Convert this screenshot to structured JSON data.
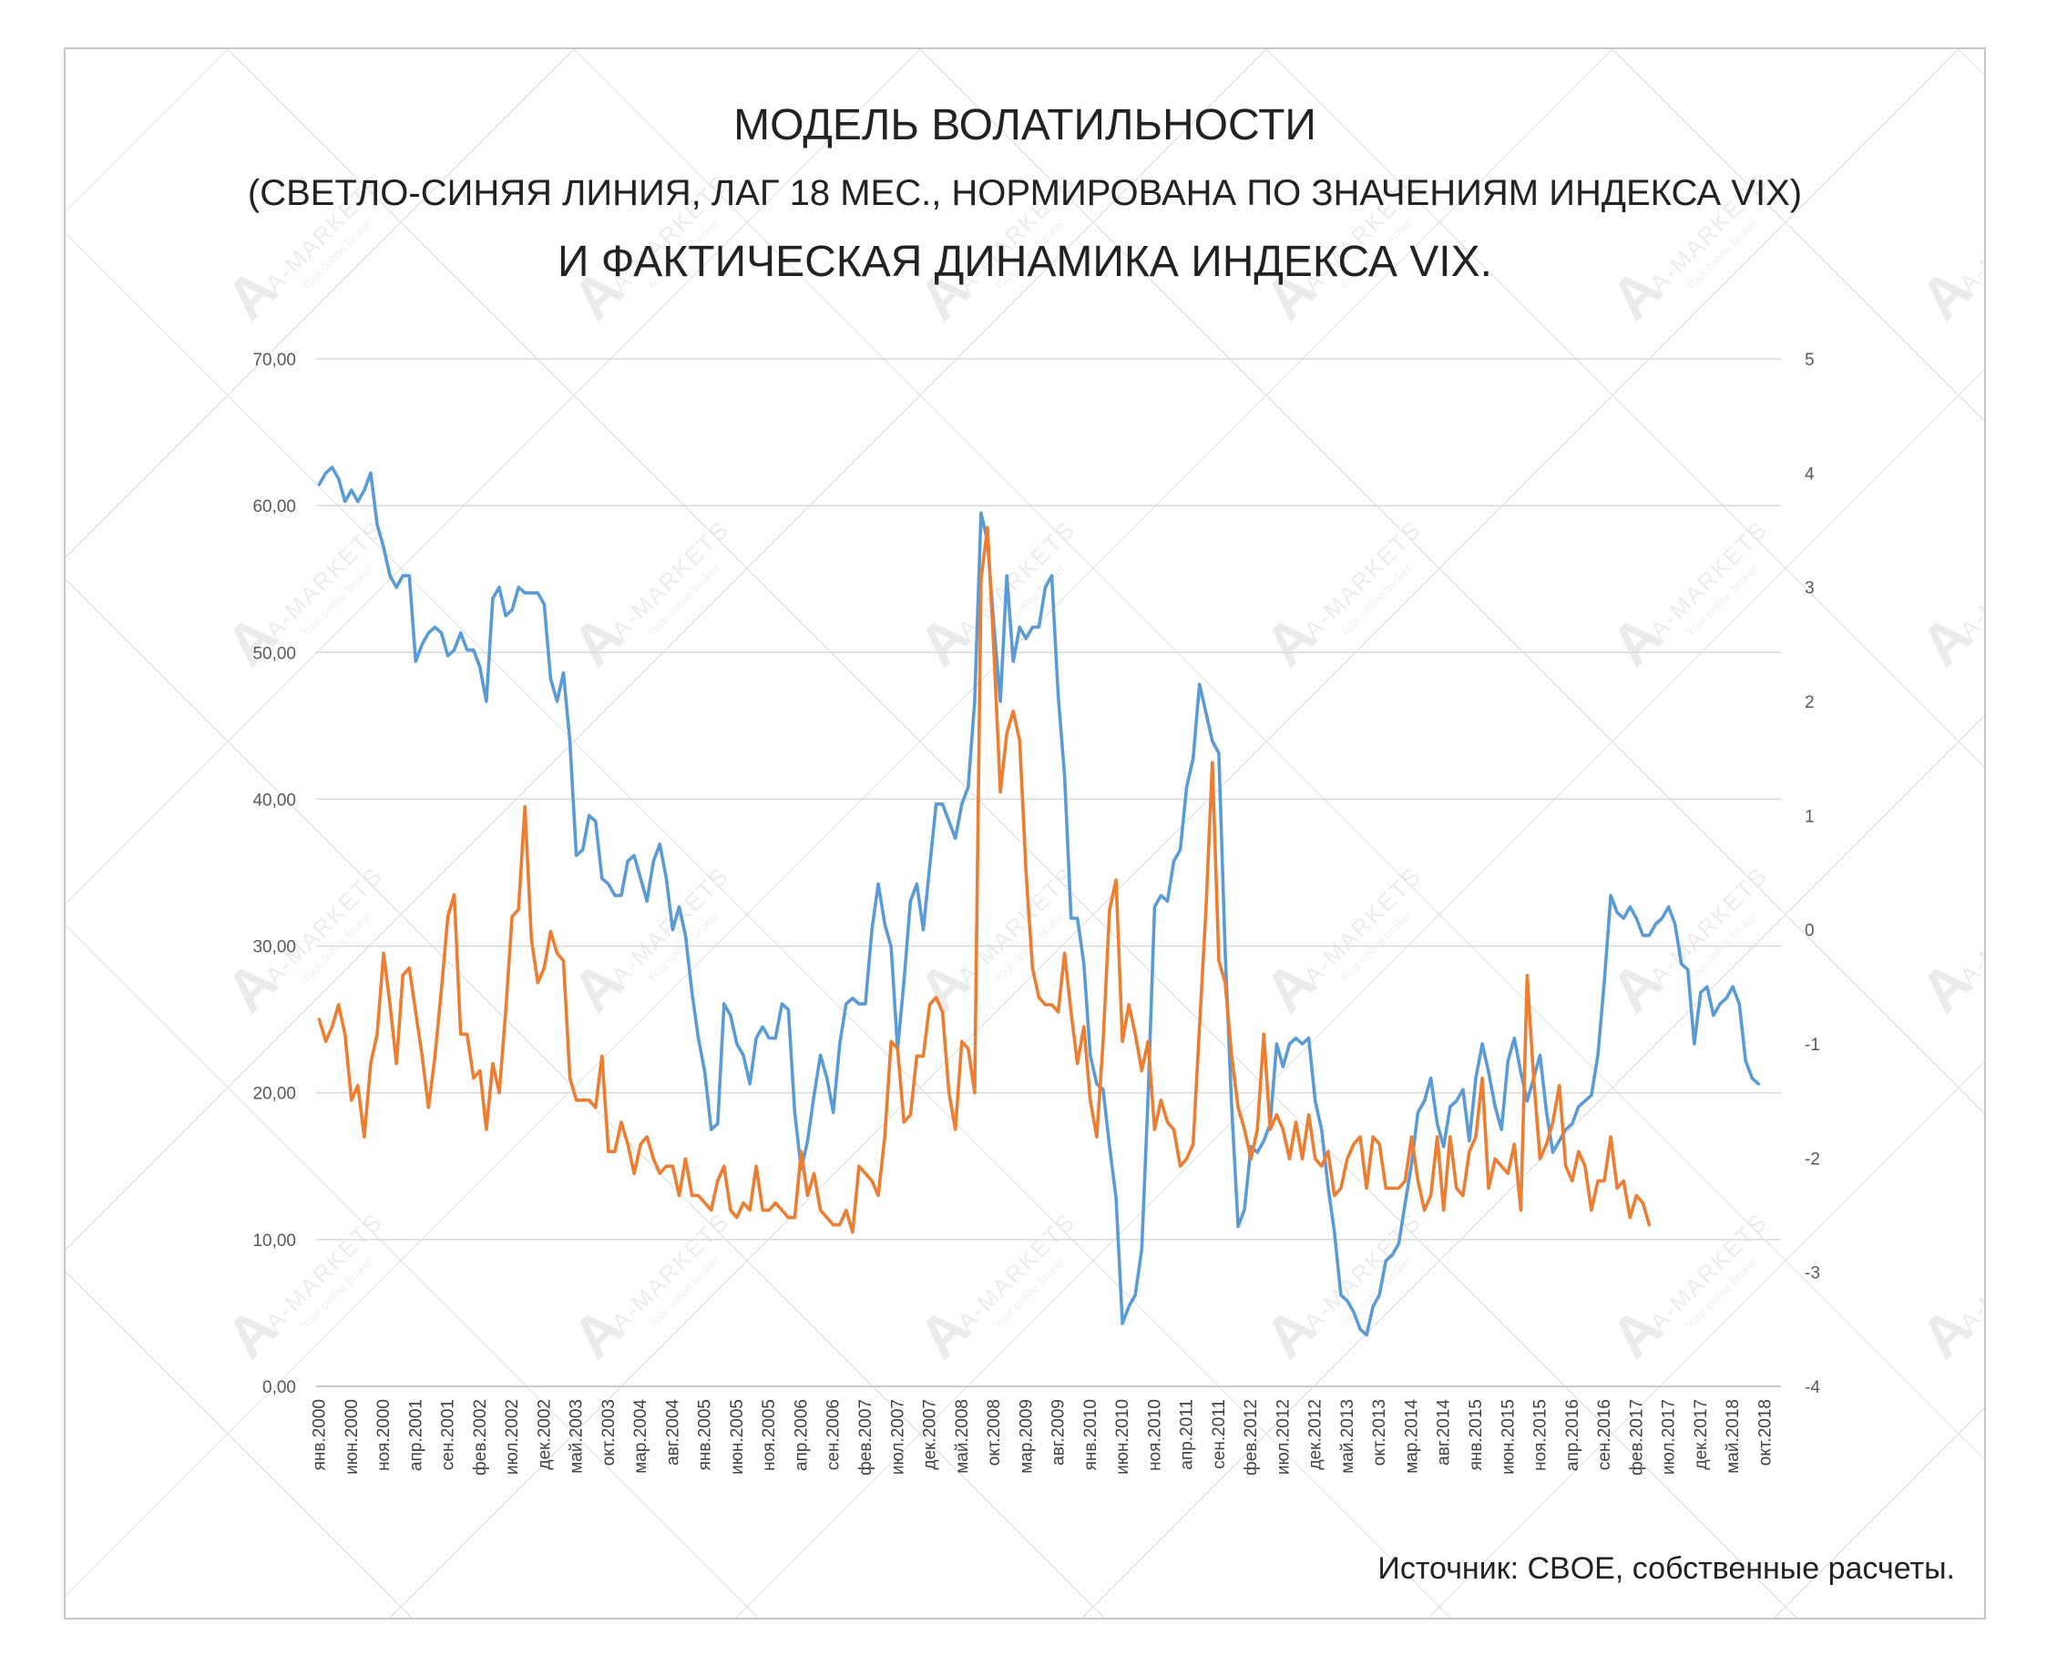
{
  "title_line1": "МОДЕЛЬ ВОЛАТИЛЬНОСТИ",
  "title_line2": "(СВЕТЛО-СИНЯЯ ЛИНИЯ, ЛАГ 18 МЕС., НОРМИРОВАНА ПО ЗНАЧЕНИЯМ ИНДЕКСА VIX)",
  "title_line3": "И ФАКТИЧЕСКАЯ ДИНАМИКА ИНДЕКСА VIX.",
  "source": "Источник: CBOE, собственные расчеты.",
  "watermark": {
    "brand": "A-MARKETS",
    "slogan": "Your online broker"
  },
  "chart_data": {
    "type": "line",
    "grid": true,
    "legend": "none",
    "x_start": "янв.2000",
    "x_end": "дек.2018",
    "x_labels": [
      "янв.2000",
      "июн.2000",
      "ноя.2000",
      "апр.2001",
      "сен.2001",
      "фев.2002",
      "июл.2002",
      "дек.2002",
      "май.2003",
      "окт.2003",
      "мар.2004",
      "авг.2004",
      "янв.2005",
      "июн.2005",
      "ноя.2005",
      "апр.2006",
      "сен.2006",
      "фев.2007",
      "июл.2007",
      "дек.2007",
      "май.2008",
      "окт.2008",
      "мар.2009",
      "авг.2009",
      "янв.2010",
      "июн.2010",
      "ноя.2010",
      "апр.2011",
      "сен.2011",
      "фев.2012",
      "июл.2012",
      "дек.2012",
      "май.2013",
      "окт.2013",
      "мар.2014",
      "авг.2014",
      "янв.2015",
      "июн.2015",
      "ноя.2015",
      "апр.2016",
      "сен.2016",
      "фев.2017",
      "июл.2017",
      "дек.2017",
      "май.2018",
      "окт.2018"
    ],
    "y_left": {
      "min": 0,
      "max": 70,
      "ticks": [
        "0,00",
        "10,00",
        "20,00",
        "30,00",
        "40,00",
        "50,00",
        "60,00",
        "70,00"
      ]
    },
    "y_right": {
      "min": -4,
      "max": 5,
      "ticks": [
        "-4",
        "-3",
        "-2",
        "-1",
        "0",
        "1",
        "2",
        "3",
        "4",
        "5"
      ]
    },
    "series": [
      {
        "axis": "right",
        "color": "#5b9bd5",
        "values": [
          3.9,
          4.0,
          4.05,
          3.95,
          3.75,
          3.85,
          3.75,
          3.85,
          4.0,
          3.55,
          3.35,
          3.1,
          3.0,
          3.1,
          3.1,
          2.35,
          2.5,
          2.6,
          2.65,
          2.6,
          2.4,
          2.45,
          2.6,
          2.45,
          2.45,
          2.3,
          2.0,
          2.9,
          3.0,
          2.75,
          2.8,
          3.0,
          2.95,
          2.95,
          2.95,
          2.85,
          2.2,
          2.0,
          2.25,
          1.65,
          0.65,
          0.7,
          1.0,
          0.95,
          0.45,
          0.4,
          0.3,
          0.3,
          0.6,
          0.65,
          0.45,
          0.25,
          0.6,
          0.75,
          0.45,
          0.0,
          0.2,
          -0.05,
          -0.55,
          -0.95,
          -1.25,
          -1.75,
          -1.7,
          -0.65,
          -0.75,
          -1.0,
          -1.1,
          -1.35,
          -0.95,
          -0.85,
          -0.95,
          -0.95,
          -0.65,
          -0.7,
          -1.6,
          -2.1,
          -1.85,
          -1.45,
          -1.1,
          -1.3,
          -1.6,
          -1.0,
          -0.65,
          -0.6,
          -0.65,
          -0.65,
          0.0,
          0.4,
          0.05,
          -0.15,
          -1.05,
          -0.45,
          0.25,
          0.4,
          0.0,
          0.55,
          1.1,
          1.1,
          0.95,
          0.8,
          1.1,
          1.25,
          2.0,
          3.65,
          3.4,
          2.65,
          2.0,
          3.1,
          2.35,
          2.65,
          2.55,
          2.65,
          2.65,
          3.0,
          3.1,
          2.05,
          1.35,
          0.1,
          0.1,
          -0.3,
          -1.1,
          -1.35,
          -1.4,
          -1.9,
          -2.35,
          -3.45,
          -3.3,
          -3.2,
          -2.8,
          -1.45,
          0.2,
          0.3,
          0.25,
          0.6,
          0.7,
          1.25,
          1.5,
          2.15,
          1.9,
          1.65,
          1.55,
          -0.2,
          -1.55,
          -2.6,
          -2.45,
          -1.9,
          -1.95,
          -1.85,
          -1.7,
          -1.0,
          -1.2,
          -1.0,
          -0.95,
          -1.0,
          -0.95,
          -1.5,
          -1.75,
          -2.25,
          -2.65,
          -3.2,
          -3.25,
          -3.35,
          -3.5,
          -3.55,
          -3.3,
          -3.2,
          -2.9,
          -2.85,
          -2.75,
          -2.4,
          -2.05,
          -1.6,
          -1.5,
          -1.3,
          -1.7,
          -1.9,
          -1.55,
          -1.5,
          -1.4,
          -1.85,
          -1.3,
          -1.0,
          -1.25,
          -1.55,
          -1.75,
          -1.15,
          -0.95,
          -1.25,
          -1.5,
          -1.3,
          -1.1,
          -1.6,
          -1.95,
          -1.85,
          -1.75,
          -1.7,
          -1.55,
          -1.5,
          -1.45,
          -1.1,
          -0.45,
          0.3,
          0.15,
          0.1,
          0.2,
          0.1,
          -0.05,
          -0.05,
          0.05,
          0.1,
          0.2,
          0.05,
          -0.3,
          -0.35,
          -1.0,
          -0.55,
          -0.5,
          -0.75,
          -0.65,
          -0.6,
          -0.5,
          -0.65,
          -1.15,
          -1.3,
          -1.35
        ]
      },
      {
        "axis": "left",
        "color": "#ed7d31",
        "values": [
          25.0,
          23.5,
          24.5,
          26.0,
          24.0,
          19.5,
          20.5,
          17.0,
          22.0,
          24.0,
          29.5,
          26.0,
          22.0,
          28.0,
          28.5,
          25.5,
          22.5,
          19.0,
          22.5,
          27.0,
          32.0,
          33.5,
          24.0,
          24.0,
          21.0,
          21.5,
          17.5,
          22.0,
          20.0,
          25.5,
          32.0,
          32.5,
          39.5,
          30.5,
          27.5,
          28.5,
          31.0,
          29.5,
          29.0,
          21.0,
          19.5,
          19.5,
          19.5,
          19.0,
          22.5,
          16.0,
          16.0,
          18.0,
          16.5,
          14.5,
          16.5,
          17.0,
          15.5,
          14.5,
          15.0,
          15.0,
          13.0,
          15.5,
          13.0,
          13.0,
          12.5,
          12.0,
          14.0,
          15.0,
          12.0,
          11.5,
          12.5,
          12.0,
          15.0,
          12.0,
          12.0,
          12.5,
          12.0,
          11.5,
          11.5,
          16.0,
          13.0,
          14.5,
          12.0,
          11.5,
          11.0,
          11.0,
          12.0,
          10.5,
          15.0,
          14.5,
          14.0,
          13.0,
          17.0,
          23.5,
          23.0,
          18.0,
          18.5,
          22.5,
          22.5,
          26.0,
          26.5,
          25.5,
          20.0,
          17.5,
          23.5,
          23.0,
          20.0,
          55.0,
          58.5,
          50.0,
          40.5,
          44.5,
          46.0,
          44.0,
          35.0,
          28.5,
          26.5,
          26.0,
          26.0,
          25.5,
          29.5,
          25.5,
          22.0,
          24.5,
          19.5,
          17.0,
          23.5,
          32.5,
          34.5,
          23.5,
          26.0,
          24.0,
          21.5,
          23.5,
          17.5,
          19.5,
          18.0,
          17.5,
          15.0,
          15.5,
          16.5,
          24.5,
          32.5,
          42.5,
          29.0,
          27.5,
          22.5,
          19.0,
          17.5,
          15.5,
          17.5,
          24.0,
          17.5,
          18.5,
          17.5,
          15.5,
          18.0,
          15.5,
          18.5,
          15.5,
          15.0,
          16.0,
          13.0,
          13.5,
          15.5,
          16.5,
          17.0,
          13.5,
          17.0,
          16.5,
          13.5,
          13.5,
          13.5,
          14.0,
          17.0,
          14.0,
          12.0,
          13.0,
          17.0,
          12.0,
          17.0,
          13.5,
          13.0,
          16.0,
          17.0,
          21.0,
          13.5,
          15.5,
          15.0,
          14.5,
          16.5,
          12.0,
          28.0,
          21.0,
          15.5,
          16.5,
          18.0,
          20.5,
          15.0,
          14.0,
          16.0,
          15.0,
          12.0,
          14.0,
          14.0,
          17.0,
          13.5,
          14.0,
          11.5,
          13.0,
          12.5,
          11.0
        ]
      }
    ]
  }
}
